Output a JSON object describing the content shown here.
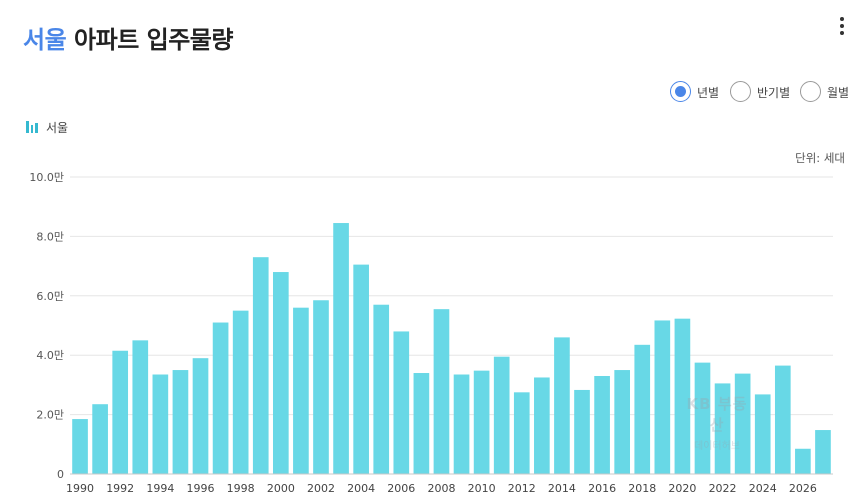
{
  "header": {
    "region": "서울",
    "title_rest": "아파트 입주물량"
  },
  "period_options": [
    {
      "label": "년별",
      "selected": true
    },
    {
      "label": "반기별",
      "selected": false
    },
    {
      "label": "월별",
      "selected": false
    }
  ],
  "legend": {
    "label": "서울",
    "color": "#68d8e6"
  },
  "unit_label": "단위: 세대",
  "watermark": {
    "line1": "KB 부동산",
    "line2": "데이터허브"
  },
  "chart_data": {
    "type": "bar",
    "title": "",
    "xlabel": "",
    "ylabel": "",
    "ylim": [
      0,
      100000
    ],
    "grid": true,
    "y_ticks": [
      {
        "value": 0,
        "label": "0"
      },
      {
        "value": 20000,
        "label": "2.0만"
      },
      {
        "value": 40000,
        "label": "4.0만"
      },
      {
        "value": 60000,
        "label": "6.0만"
      },
      {
        "value": 80000,
        "label": "8.0만"
      },
      {
        "value": 100000,
        "label": "10.0만"
      }
    ],
    "x_tick_labels": [
      "1990",
      "1992",
      "1994",
      "1996",
      "1998",
      "2000",
      "2002",
      "2004",
      "2006",
      "2008",
      "2010",
      "2012",
      "2014",
      "2016",
      "2018",
      "2020",
      "2022",
      "2024",
      "2026"
    ],
    "categories": [
      "1990",
      "1991",
      "1992",
      "1993",
      "1994",
      "1995",
      "1996",
      "1997",
      "1998",
      "1999",
      "2000",
      "2001",
      "2002",
      "2003",
      "2004",
      "2005",
      "2006",
      "2007",
      "2008",
      "2009",
      "2010",
      "2011",
      "2012",
      "2013",
      "2014",
      "2015",
      "2016",
      "2017",
      "2018",
      "2019",
      "2020",
      "2021",
      "2022",
      "2023",
      "2024",
      "2025",
      "2026",
      "2027"
    ],
    "series": [
      {
        "name": "서울",
        "values": [
          18500,
          23500,
          41500,
          45000,
          33500,
          35000,
          39000,
          51000,
          55000,
          73000,
          68000,
          56000,
          58500,
          84500,
          70500,
          57000,
          48000,
          34000,
          55500,
          33500,
          34800,
          39500,
          27500,
          32500,
          46000,
          28300,
          33000,
          35000,
          43500,
          51700,
          52300,
          37500,
          30500,
          33800,
          26800,
          36500,
          8500,
          14800
        ]
      }
    ]
  }
}
